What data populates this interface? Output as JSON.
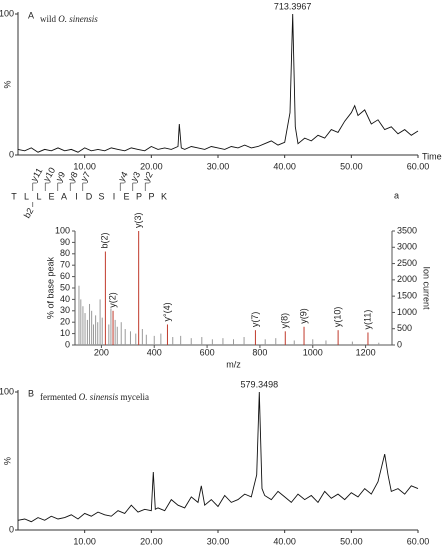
{
  "chart_data": [
    {
      "type": "line",
      "panel": "A",
      "title": "wild",
      "title_italic": "O. sinensis",
      "peak_label": "713.3967",
      "xlabel": "Time",
      "ylabel": "%",
      "color": "#111111",
      "x": [
        0,
        1,
        2,
        3,
        4,
        5,
        6,
        7,
        8,
        9,
        10,
        11,
        12,
        13,
        14,
        15,
        16,
        17,
        18,
        19,
        20,
        21,
        22,
        23,
        24,
        24.2,
        24.5,
        25,
        26,
        27,
        28,
        29,
        30,
        31,
        32,
        33,
        34,
        35,
        36,
        37,
        38,
        39,
        40,
        40.8,
        41.2,
        41.6,
        42,
        43,
        44,
        45,
        46,
        47,
        48,
        49,
        50,
        50.5,
        51,
        52,
        53,
        54,
        55,
        56,
        57,
        58,
        59,
        60
      ],
      "values": [
        4,
        3,
        5,
        2,
        4,
        3,
        5,
        3,
        4,
        2,
        5,
        3,
        4,
        3,
        5,
        4,
        3,
        5,
        4,
        3,
        6,
        4,
        5,
        4,
        6,
        22,
        5,
        4,
        6,
        5,
        4,
        6,
        5,
        4,
        6,
        5,
        7,
        5,
        6,
        8,
        10,
        7,
        9,
        30,
        100,
        20,
        8,
        12,
        10,
        14,
        12,
        18,
        16,
        24,
        30,
        35,
        28,
        32,
        22,
        25,
        18,
        20,
        15,
        18,
        14,
        17
      ],
      "xlim": [
        0,
        60
      ],
      "ylim": [
        0,
        100
      ],
      "yticks": [
        0,
        100
      ],
      "xticks": [
        {
          "value": 10,
          "label": "10.00"
        },
        {
          "value": 20,
          "label": "20.00"
        },
        {
          "value": 30,
          "label": "30.00"
        },
        {
          "value": 40,
          "label": "40.00"
        },
        {
          "value": 50,
          "label": "50.00"
        },
        {
          "value": 60,
          "label": "60.00"
        }
      ]
    },
    {
      "type": "stick",
      "panel": "a",
      "residues": [
        "T",
        "L",
        "L",
        "E",
        "A",
        "I",
        "D",
        "S",
        "I",
        "E",
        "P",
        "P",
        "K"
      ],
      "ions": [
        "y11",
        "y10",
        "y9",
        "y8",
        "y7",
        "y4",
        "y3",
        "y2",
        "b2"
      ],
      "xlabel": "m/z",
      "ylabel": "% of base peak",
      "y2label": "Ion current",
      "series": [
        {
          "color": "#9a9a9a",
          "x": [
            115,
            122,
            130,
            138,
            147,
            155,
            163,
            170,
            178,
            186,
            195,
            203,
            228,
            236,
            252,
            260,
            275,
            290,
            310,
            330,
            355,
            370,
            400,
            425,
            470,
            500,
            540,
            580,
            620,
            660,
            700,
            740,
            820,
            860,
            930,
            1000,
            1050,
            1150,
            1250
          ],
          "values": [
            52,
            40,
            34,
            28,
            22,
            36,
            30,
            18,
            26,
            20,
            40,
            24,
            18,
            32,
            22,
            16,
            20,
            14,
            12,
            10,
            14,
            9,
            8,
            10,
            7,
            8,
            6,
            7,
            5,
            6,
            5,
            7,
            5,
            6,
            4,
            5,
            4,
            3,
            2
          ]
        },
        {
          "color": "#c0392b",
          "x": [
            215,
            244,
            341,
            450,
            783,
            896,
            967,
            1096,
            1209
          ],
          "values": [
            82,
            30,
            100,
            18,
            13,
            12,
            16,
            13,
            11
          ],
          "labels": [
            "b(2)",
            "y(2)",
            "y(3)",
            "y°(4)",
            "y(7)",
            "y(8)",
            "y(9)",
            "y(10)",
            "y(11)"
          ]
        }
      ],
      "xlim": [
        100,
        1300
      ],
      "xticks": [
        200,
        400,
        600,
        800,
        1000,
        1200
      ],
      "ylim": [
        0,
        100
      ],
      "yticks": [
        0,
        10,
        20,
        30,
        40,
        50,
        60,
        70,
        80,
        90,
        100
      ],
      "y2lim": [
        0,
        3500
      ],
      "y2ticks": [
        0,
        500,
        1000,
        1500,
        2000,
        2500,
        3000,
        3500
      ]
    },
    {
      "type": "line",
      "panel": "B",
      "title": "fermented",
      "title_italic": "O. sinensis",
      "title_end": "mycelia",
      "peak_label": "579.3498",
      "ylabel": "%",
      "color": "#111111",
      "x": [
        0,
        1,
        2,
        3,
        4,
        5,
        6,
        7,
        8,
        9,
        10,
        11,
        12,
        13,
        14,
        15,
        16,
        17,
        18,
        19,
        20,
        20.3,
        20.6,
        21,
        22,
        23,
        24,
        25,
        26,
        27,
        27.5,
        28,
        29,
        30,
        31,
        32,
        33,
        34,
        35,
        35.8,
        36.2,
        36.6,
        37,
        38,
        39,
        40,
        41,
        42,
        43,
        44,
        45,
        46,
        47,
        48,
        49,
        50,
        51,
        52,
        53,
        54,
        55,
        55.5,
        56,
        57,
        58,
        59,
        60
      ],
      "values": [
        7,
        8,
        6,
        9,
        7,
        10,
        8,
        9,
        11,
        8,
        12,
        10,
        13,
        11,
        10,
        14,
        12,
        18,
        13,
        15,
        14,
        42,
        15,
        16,
        14,
        22,
        18,
        16,
        24,
        20,
        32,
        18,
        22,
        17,
        25,
        20,
        22,
        26,
        24,
        40,
        100,
        30,
        25,
        22,
        28,
        24,
        20,
        26,
        22,
        25,
        20,
        28,
        23,
        26,
        22,
        27,
        24,
        30,
        26,
        35,
        55,
        40,
        28,
        30,
        26,
        32,
        30
      ],
      "xlim": [
        0,
        60
      ],
      "ylim": [
        0,
        100
      ],
      "yticks": [
        0,
        100
      ],
      "xticks": [
        {
          "value": 10,
          "label": "10.00"
        },
        {
          "value": 20,
          "label": "20.00"
        },
        {
          "value": 30,
          "label": "30.00"
        },
        {
          "value": 40,
          "label": "40.00"
        },
        {
          "value": 50,
          "label": "50.00"
        },
        {
          "value": 60,
          "label": "60.00"
        }
      ]
    }
  ]
}
